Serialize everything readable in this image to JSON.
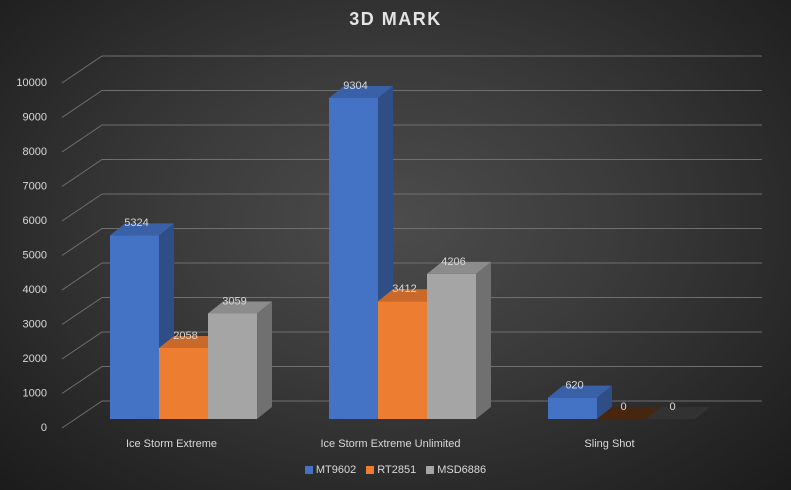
{
  "chart_data": {
    "type": "bar",
    "style": "3d-clustered-column",
    "title": "3D MARK",
    "categories": [
      "Ice Storm Extreme",
      "Ice Storm Extreme Unlimited",
      "Sling Shot"
    ],
    "series": [
      {
        "name": "MT9602",
        "values": [
          5324,
          9304,
          620
        ],
        "color": "#4472c4"
      },
      {
        "name": "RT2851",
        "values": [
          2058,
          3412,
          0
        ],
        "color": "#ed7d31"
      },
      {
        "name": "MSD6886",
        "values": [
          3059,
          4206,
          0
        ],
        "color": "#a5a5a5"
      }
    ],
    "ylim": [
      0,
      10000
    ],
    "yticks": [
      0,
      1000,
      2000,
      3000,
      4000,
      5000,
      6000,
      7000,
      8000,
      9000,
      10000
    ],
    "data_labels": true,
    "grid": true,
    "legend_position": "bottom",
    "background": "#3a3a3a"
  }
}
